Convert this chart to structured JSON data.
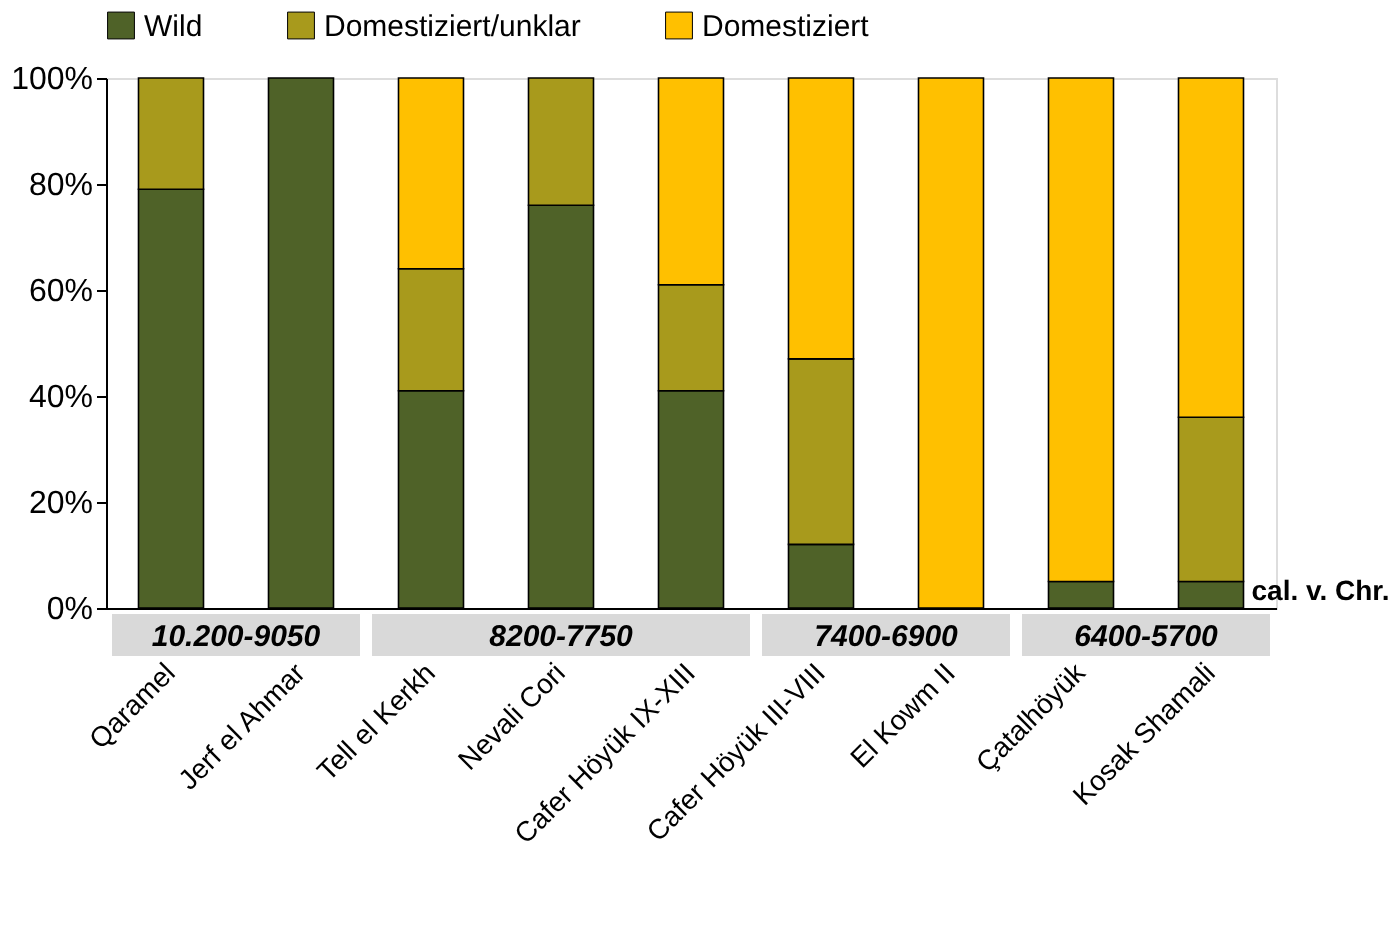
{
  "chart_data": {
    "type": "bar",
    "stacked": true,
    "categories": [
      "Qaramel",
      "Jerf el Ahmar",
      "Tell el Kerkh",
      "Nevali Cori",
      "Cafer Höyük IX-XIII",
      "Cafer Höyük III-VIII",
      "El Kowm II",
      "Çatalhöyük",
      "Kosak Shamali"
    ],
    "series": [
      {
        "name": "Wild",
        "color": "#4f6228",
        "values": [
          79,
          100,
          41,
          76,
          41,
          12,
          0,
          5,
          5
        ]
      },
      {
        "name": "Domestiziert/unklar",
        "color": "#a89a1c",
        "values": [
          21,
          0,
          23,
          24,
          20,
          35,
          0,
          0,
          31
        ]
      },
      {
        "name": "Domestiziert",
        "color": "#ffc000",
        "values": [
          0,
          0,
          36,
          0,
          39,
          53,
          100,
          95,
          64
        ]
      }
    ],
    "ylim": [
      0,
      100
    ],
    "yticks": [
      {
        "value": 0,
        "label": "0%"
      },
      {
        "value": 20,
        "label": "20%"
      },
      {
        "value": 40,
        "label": "40%"
      },
      {
        "value": 60,
        "label": "60%"
      },
      {
        "value": 80,
        "label": "80%"
      },
      {
        "value": 100,
        "label": "100%"
      }
    ],
    "grid": false,
    "legend": "top",
    "annotations": [
      "10.200-9050",
      "8200-7750",
      "7400-6900",
      "6400-5700",
      "cal. v. Chr."
    ]
  }
}
